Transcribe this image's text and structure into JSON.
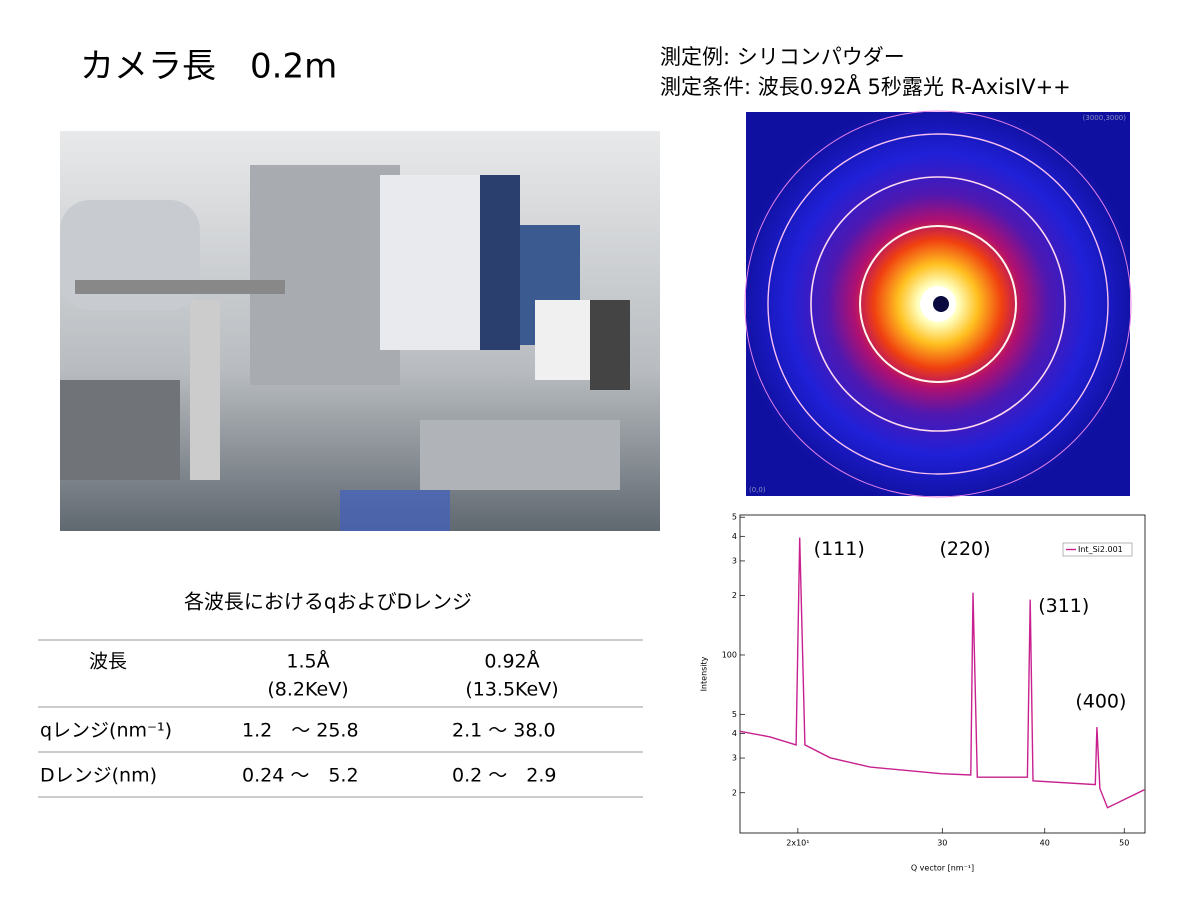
{
  "title": "カメラ長　0.2m",
  "sample": "測定例: シリコンパウダー",
  "conditions": "測定条件: 波長0.92Å  5秒露光   R-AxisIV++",
  "detector_image": {
    "corner_top_right": "(3000,3000)",
    "corner_bottom_left": "(0,0)"
  },
  "table": {
    "caption": "各波長におけるqおよびDレンジ",
    "header": [
      [
        "波長"
      ],
      [
        "1.5Å",
        "(8.2KeV)"
      ],
      [
        "0.92Å",
        "(13.5KeV)"
      ]
    ],
    "rows": [
      [
        "qレンジ(nm⁻¹)",
        "1.2　～ 25.8",
        "2.1 ～ 38.0"
      ],
      [
        "Dレンジ(nm)",
        "0.24 ～　5.2",
        "0.2 ～　2.9"
      ]
    ]
  },
  "chart_data": {
    "type": "line",
    "x_label": "Q vector [nm⁻¹]",
    "y_label": "Intensity",
    "log_x": true,
    "log_y": true,
    "legend": "upper right",
    "xlim": [
      17,
      53
    ],
    "ylim": [
      12.5,
      513
    ],
    "xticks": [
      {
        "value": 20,
        "label": "2x10¹"
      },
      30,
      40,
      50
    ],
    "yticks": [
      {
        "value": 500,
        "label": "5"
      },
      {
        "value": 400,
        "label": "4"
      },
      {
        "value": 300,
        "label": "3"
      },
      {
        "value": 200,
        "label": "2"
      },
      100,
      {
        "value": 50,
        "label": "5"
      },
      {
        "value": 40,
        "label": "4"
      },
      {
        "value": 30,
        "label": "3"
      },
      {
        "value": 20,
        "label": "2"
      }
    ],
    "x": [
      17.0,
      18.5,
      19.9,
      20.1,
      20.4,
      21.9,
      24.5,
      29.9,
      32.5,
      32.7,
      33.1,
      38.1,
      38.4,
      38.7,
      46.1,
      46.3,
      46.7,
      47.7,
      52.9
    ],
    "series": [
      {
        "name": "Int_Si2.001",
        "color": "#c8208f",
        "values": [
          41,
          38.4,
          35,
          394,
          35,
          30.1,
          27,
          25,
          24.6,
          207,
          24,
          24,
          191,
          23,
          22,
          43,
          21,
          16.8,
          20.7
        ]
      }
    ],
    "annotations": [
      {
        "text": "(111)",
        "x": 20.1,
        "y": 394
      },
      {
        "text": "(220)",
        "x": 32.7,
        "y": 207
      },
      {
        "text": "(311)",
        "x": 38.4,
        "y": 191
      },
      {
        "text": "(400)",
        "x": 46.3,
        "y": 43
      }
    ]
  }
}
